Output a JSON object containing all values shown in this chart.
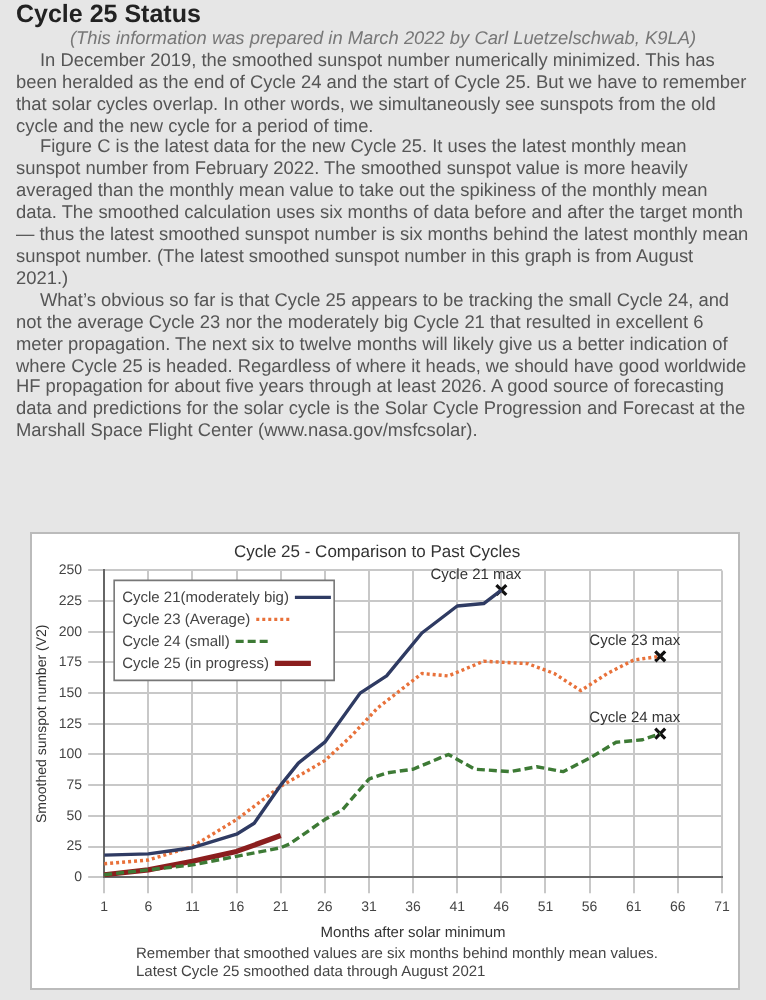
{
  "chart_data": {
    "type": "line",
    "title": "Cycle 25 - Comparison to Past Cycles",
    "xlabel": "Months after solar minimum",
    "ylabel": "Smoothed sunspot number (V2)",
    "xlim": [
      1,
      71
    ],
    "xticks": [
      1,
      6,
      11,
      16,
      21,
      26,
      31,
      36,
      41,
      46,
      51,
      56,
      61,
      66,
      71
    ],
    "ylim": [
      0,
      250
    ],
    "yticks": [
      0,
      25,
      50,
      75,
      100,
      125,
      150,
      175,
      200,
      225,
      250
    ],
    "grid": true,
    "legend": "top left",
    "marker": "none",
    "series": [
      {
        "name": "Cycle 21(moderately big)",
        "color": "#2f3b63",
        "line_style": "solid",
        "x": [
          1,
          6,
          9,
          11,
          16,
          18,
          21,
          23,
          26,
          30,
          33,
          37,
          41,
          44,
          46
        ],
        "values": [
          18,
          19,
          22,
          24,
          35,
          44,
          75,
          93,
          110,
          150,
          164,
          199,
          221,
          223,
          234
        ]
      },
      {
        "name": "Cycle 23 (Average)",
        "color": "#e8713a",
        "line_style": "dotted",
        "x": [
          1,
          6,
          11,
          16,
          21,
          26,
          29,
          32,
          37,
          40,
          44,
          49,
          52,
          55,
          58,
          61,
          64
        ],
        "values": [
          11,
          14,
          25,
          47,
          74,
          95,
          115,
          138,
          166,
          164,
          176,
          174,
          166,
          152,
          166,
          177,
          180
        ]
      },
      {
        "name": "Cycle 24 (small)",
        "color": "#3d7a35",
        "line_style": "dashed",
        "x": [
          1,
          11,
          16,
          21,
          22,
          26,
          28,
          31,
          33,
          36,
          40,
          43,
          47,
          50,
          53,
          56,
          59,
          62,
          64
        ],
        "values": [
          2,
          10,
          17,
          24,
          27,
          47,
          55,
          80,
          85,
          88,
          100,
          88,
          86,
          90,
          86,
          97,
          110,
          112,
          117
        ]
      },
      {
        "name": "Cycle 25 (in progress)",
        "color": "#8b1e1e",
        "line_style": "solid",
        "x": [
          1,
          6,
          11,
          16,
          21
        ],
        "values": [
          2,
          6,
          13,
          21,
          34
        ]
      },
      {
        "type": "scatter",
        "color": "#111111",
        "marker": "cross",
        "x": [
          46,
          64,
          64
        ],
        "values": [
          234,
          180,
          117
        ],
        "value_labels": [
          "Cycle 21 max",
          "Cycle 23 max",
          "Cycle 24 max"
        ]
      }
    ],
    "annotations": [
      "Cycle 25 Status",
      "(This information was prepared in March 2022 by Carl Luetzelschwab, K9LA)",
      "In December 2019, the smoothed sunspot number numerically minimized. This has been heralded as the end of Cycle 24 and the start of Cycle 25. But we have to remember that solar cycles overlap. In other words, we simultaneously see sunspots from the old cycle and the new cycle for a period of time.",
      "Figure C is the latest data for the new Cycle 25. It uses the latest monthly mean sunspot number from February 2022. The smoothed sunspot value is more heavily averaged than the monthly mean value to take out the spikiness of the monthly mean data. The smoothed calculation uses six months of data before and after the target month — thus the latest smoothed sunspot number is six months behind the latest monthly mean sunspot number. (The latest smoothed sunspot number in this graph is from August 2021.)",
      "What’s obvious so far is that Cycle 25 appears to be tracking the small Cycle 24, and not the average Cycle 23 nor the moderately big Cycle 21 that resulted in excellent 6 meter propagation. The next six to twelve months will likely give us a better indication of where Cycle 25 is headed. Regardless of where it heads, we should have good worldwide HF propagation for about five years through at least 2026. A good source of forecasting data and predictions for the solar cycle is the Solar Cycle Progression and Forecast at the Marshall Space Flight Center (www.nasa.gov/msfcsolar).",
      "Remember that smoothed values are six months behind monthly mean values.",
      "Latest Cycle 25 smoothed data through August 2021"
    ]
  }
}
